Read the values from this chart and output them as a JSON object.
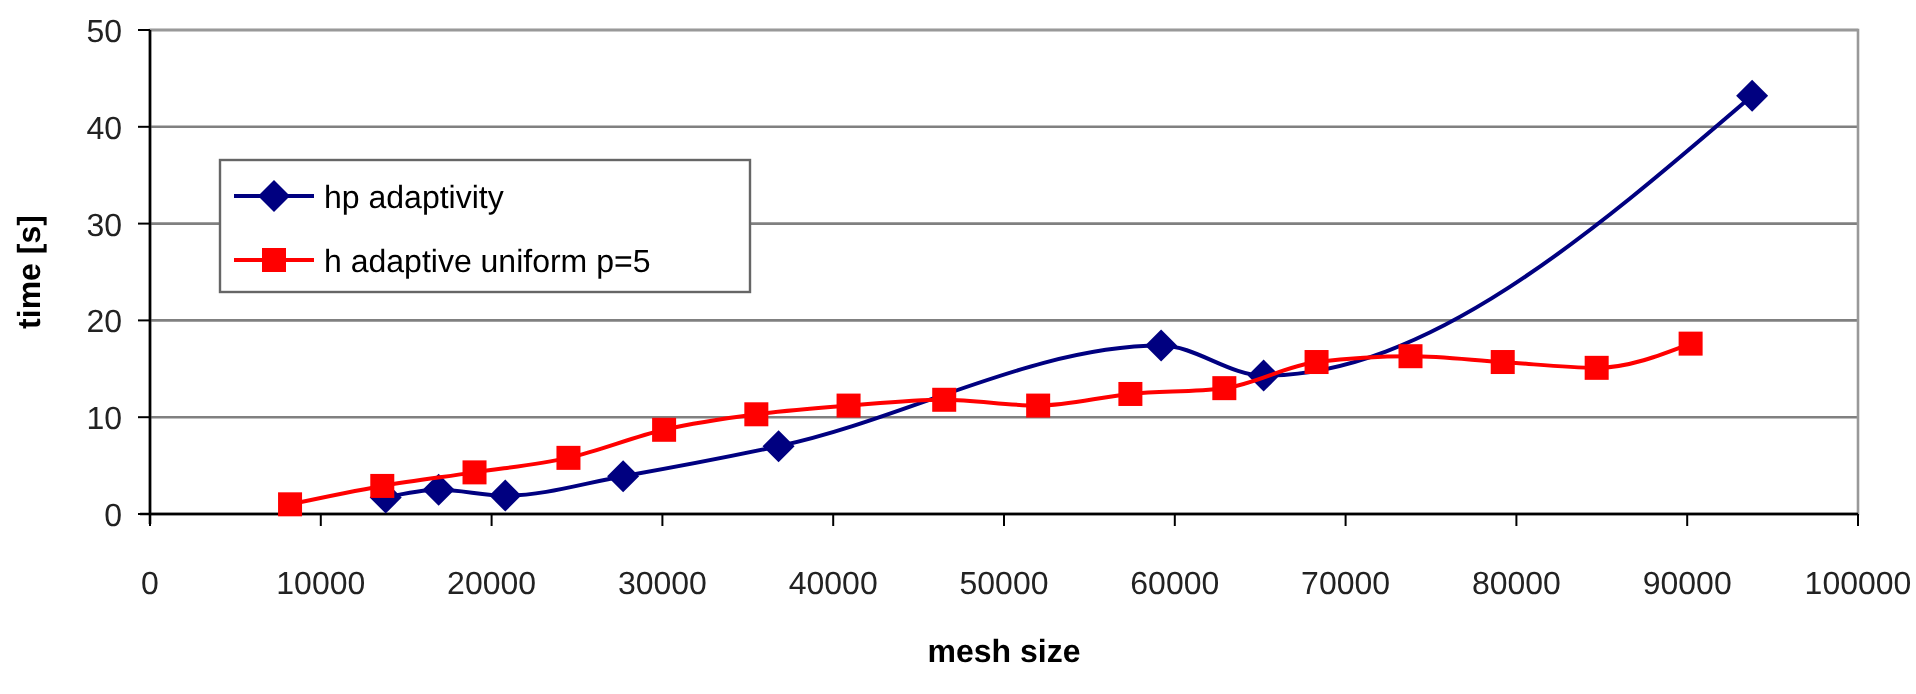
{
  "chart_data": {
    "type": "line",
    "xlabel": "mesh size",
    "ylabel": "time [s]",
    "xlim": [
      0,
      100000
    ],
    "xticks": [
      0,
      10000,
      20000,
      30000,
      40000,
      50000,
      60000,
      70000,
      80000,
      90000,
      100000
    ],
    "ylim": [
      0,
      50
    ],
    "yticks": [
      0,
      10,
      20,
      30,
      40,
      50
    ],
    "grid": "y",
    "legend": "left",
    "series": [
      {
        "name": "hp adaptivity",
        "color": "#000080",
        "marker": "diamond",
        "x": [
          13800,
          16900,
          20800,
          27700,
          36800,
          59200,
          65200,
          93800
        ],
        "values": [
          1.7,
          2.5,
          1.9,
          3.9,
          7.0,
          17.4,
          14.3,
          43.2
        ]
      },
      {
        "name": "h adaptive uniform p=5",
        "color": "#ff0000",
        "marker": "square",
        "x": [
          8200,
          13600,
          19000,
          24500,
          30100,
          35500,
          40900,
          46500,
          52000,
          57400,
          62900,
          68300,
          73800,
          79200,
          84700,
          90200
        ],
        "values": [
          1.0,
          2.9,
          4.3,
          5.8,
          8.7,
          10.3,
          11.2,
          11.8,
          11.2,
          12.4,
          13.0,
          15.7,
          16.3,
          15.7,
          15.1,
          17.6
        ]
      }
    ]
  }
}
